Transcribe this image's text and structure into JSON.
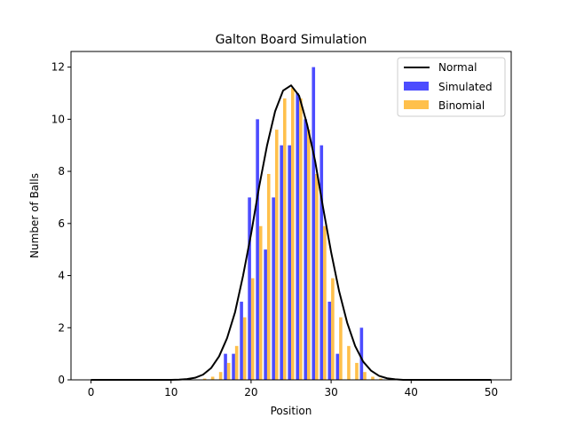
{
  "chart_data": {
    "type": "bar",
    "title": "Galton Board Simulation",
    "xlabel": "Position",
    "ylabel": "Number of Balls",
    "xlim": [
      -2.5,
      52.5
    ],
    "ylim": [
      0,
      12.6
    ],
    "xticks": [
      0,
      10,
      20,
      30,
      40,
      50
    ],
    "yticks": [
      0,
      2,
      4,
      6,
      8,
      10,
      12
    ],
    "legend_position": "top-right",
    "series": [
      {
        "name": "Simulated",
        "kind": "bar",
        "color": "#0000ff",
        "opacity": 0.7,
        "offset": -0.2,
        "x": [
          17,
          18,
          19,
          20,
          21,
          22,
          23,
          24,
          25,
          26,
          27,
          28,
          29,
          30,
          31,
          34
        ],
        "values": [
          1,
          1,
          3,
          7,
          10,
          5,
          7,
          9,
          9,
          11,
          10,
          12,
          9,
          3,
          1,
          2
        ]
      },
      {
        "name": "Binomial",
        "kind": "bar",
        "color": "#ffa500",
        "opacity": 0.7,
        "offset": 0.2,
        "x": [
          14,
          15,
          16,
          17,
          18,
          19,
          20,
          21,
          22,
          23,
          24,
          25,
          26,
          27,
          28,
          29,
          30,
          31,
          32,
          33,
          34,
          35,
          36
        ],
        "values": [
          0.05,
          0.12,
          0.3,
          0.65,
          1.3,
          2.4,
          3.9,
          5.9,
          7.9,
          9.6,
          10.8,
          11.2,
          10.8,
          9.6,
          7.9,
          5.9,
          3.9,
          2.4,
          1.3,
          0.65,
          0.3,
          0.12,
          0.05
        ]
      },
      {
        "name": "Normal",
        "kind": "line",
        "color": "#000000",
        "x": [
          0,
          1,
          2,
          3,
          4,
          5,
          6,
          7,
          8,
          9,
          10,
          11,
          12,
          13,
          14,
          15,
          16,
          17,
          18,
          19,
          20,
          21,
          22,
          23,
          24,
          25,
          26,
          27,
          28,
          29,
          30,
          31,
          32,
          33,
          34,
          35,
          36,
          37,
          38,
          39,
          40,
          41,
          42,
          43,
          44,
          45,
          46,
          47,
          48,
          49,
          50
        ],
        "values": [
          0,
          0,
          0,
          0,
          0,
          0,
          0,
          0,
          0,
          0,
          0,
          0.01,
          0.03,
          0.08,
          0.2,
          0.45,
          0.9,
          1.6,
          2.6,
          4.0,
          5.6,
          7.4,
          9.0,
          10.3,
          11.1,
          11.3,
          10.9,
          9.8,
          8.4,
          6.6,
          4.9,
          3.4,
          2.2,
          1.3,
          0.7,
          0.35,
          0.15,
          0.06,
          0.02,
          0,
          0,
          0,
          0,
          0,
          0,
          0,
          0,
          0,
          0,
          0,
          0
        ]
      }
    ],
    "legend": [
      "Normal",
      "Simulated",
      "Binomial"
    ]
  }
}
